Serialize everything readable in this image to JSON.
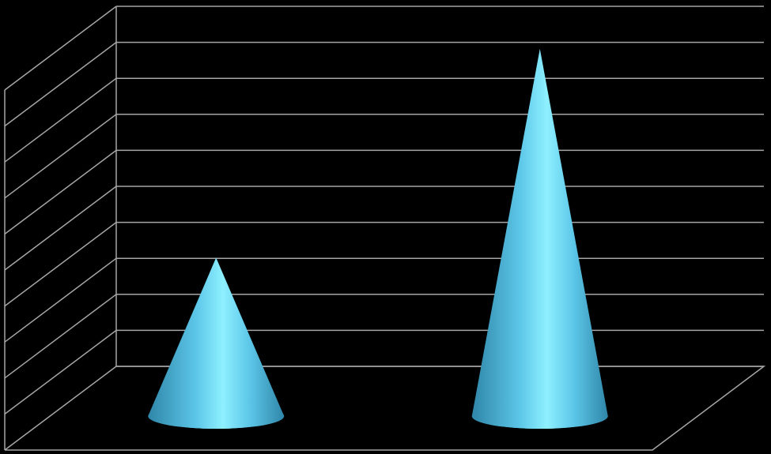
{
  "chart_data": {
    "type": "bar",
    "style": "3d-cone",
    "categories": [
      "",
      ""
    ],
    "series": [
      {
        "values": [
          4.4,
          10.2
        ]
      }
    ],
    "ylim": [
      0,
      10
    ],
    "grid": true,
    "legend": "none",
    "colors": {
      "background": "#000000",
      "gridline": "#a6a6a6",
      "cone_light": "#8ef0ff",
      "cone_mid": "#5cc6e8",
      "cone_dark": "#2f86a8"
    }
  }
}
